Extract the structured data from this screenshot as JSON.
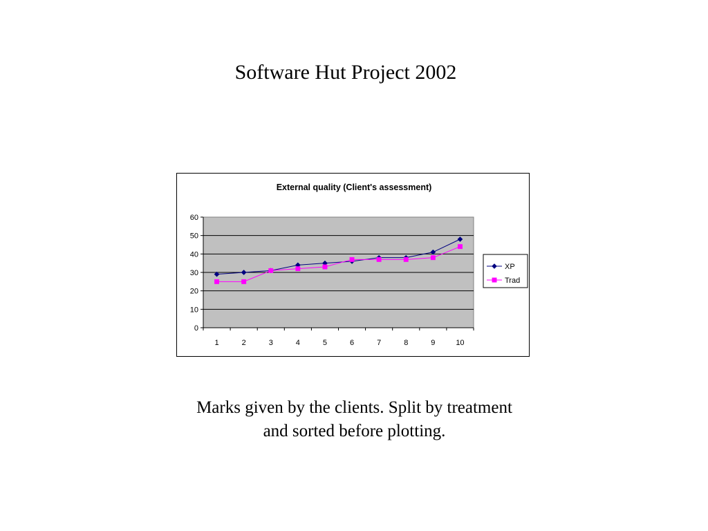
{
  "slide": {
    "title": "Software Hut Project 2002",
    "caption_line1": "Marks given by the clients. Split by treatment",
    "caption_line2": "and sorted before plotting."
  },
  "chart_data": {
    "type": "line",
    "title": "External quality (Client's assessment)",
    "xlabel": "",
    "ylabel": "",
    "categories": [
      "1",
      "2",
      "3",
      "4",
      "5",
      "6",
      "7",
      "8",
      "9",
      "10"
    ],
    "ylim": [
      0,
      60
    ],
    "yticks": [
      0,
      10,
      20,
      30,
      40,
      50,
      60
    ],
    "grid": true,
    "legend": "right",
    "plot_background": "#c0c0c0",
    "series": [
      {
        "name": "XP",
        "color": "#000080",
        "marker": "diamond",
        "values": [
          29,
          30,
          31,
          34,
          35,
          36,
          38,
          38,
          41,
          48
        ]
      },
      {
        "name": "Trad",
        "color": "#ff00ff",
        "marker": "square",
        "values": [
          25,
          25,
          31,
          32,
          33,
          37,
          37,
          37,
          38,
          44
        ]
      }
    ]
  }
}
